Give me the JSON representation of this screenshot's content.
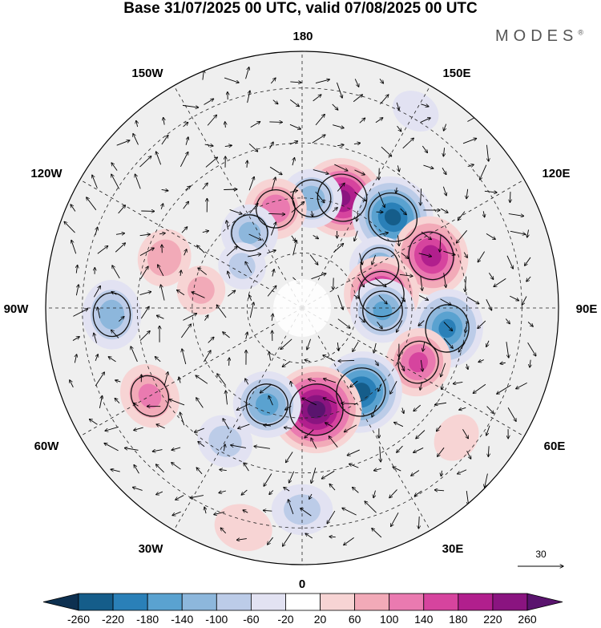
{
  "title": "Base 31/07/2025 00 UTC, valid 07/08/2025 00 UTC",
  "brand": "MODES",
  "brand_mark": "®",
  "longitude_labels": {
    "top": "180",
    "upper_left": "150W",
    "upper_right": "150E",
    "left_upper": "120W",
    "right_upper": "120E",
    "left": "90W",
    "right": "90E",
    "left_lower": "60W",
    "right_lower": "60E",
    "lower_left": "30W",
    "lower_right": "30E",
    "bottom": "0"
  },
  "vector_reference": "30",
  "colorbar": {
    "ticks": [
      "-260",
      "-220",
      "-180",
      "-140",
      "-100",
      "-60",
      "-20",
      "20",
      "60",
      "100",
      "140",
      "180",
      "220",
      "260"
    ],
    "colors": [
      "#0d3050",
      "#155d8a",
      "#2a80b8",
      "#5aa2d0",
      "#8db7dc",
      "#bccce8",
      "#e2e2f2",
      "#ffffff",
      "#f7d4d4",
      "#f2aab8",
      "#ea7ab0",
      "#d6449e",
      "#b11f8d",
      "#8a1480",
      "#5a146e"
    ]
  },
  "anomalies": [
    {
      "lon": 160,
      "lat": 58,
      "value": 230
    },
    {
      "lon": 175,
      "lat": 60,
      "value": -120
    },
    {
      "lon": -165,
      "lat": 62,
      "value": 130
    },
    {
      "lon": -145,
      "lat": 65,
      "value": -110
    },
    {
      "lon": 135,
      "lat": 55,
      "value": -230
    },
    {
      "lon": 118,
      "lat": 66,
      "value": -130
    },
    {
      "lon": 112,
      "lat": 52,
      "value": 200
    },
    {
      "lon": 100,
      "lat": 68,
      "value": 210
    },
    {
      "lon": 82,
      "lat": 50,
      "value": -190
    },
    {
      "lon": 88,
      "lat": 68,
      "value": -150
    },
    {
      "lon": 65,
      "lat": 55,
      "value": 150
    },
    {
      "lon": 35,
      "lat": 62,
      "value": -240
    },
    {
      "lon": 8,
      "lat": 62,
      "value": 280
    },
    {
      "lon": -20,
      "lat": 62,
      "value": -160
    },
    {
      "lon": -30,
      "lat": 48,
      "value": -80
    },
    {
      "lon": -60,
      "lat": 42,
      "value": 110
    },
    {
      "lon": -88,
      "lat": 38,
      "value": -120
    },
    {
      "lon": -110,
      "lat": 50,
      "value": 90
    },
    {
      "lon": -100,
      "lat": 62,
      "value": 70
    },
    {
      "lon": -125,
      "lat": 70,
      "value": -70
    },
    {
      "lon": 0,
      "lat": 35,
      "value": -80
    },
    {
      "lon": -15,
      "lat": 28,
      "value": 60
    },
    {
      "lon": 50,
      "lat": 35,
      "value": 40
    },
    {
      "lon": 150,
      "lat": 28,
      "value": -30
    }
  ]
}
